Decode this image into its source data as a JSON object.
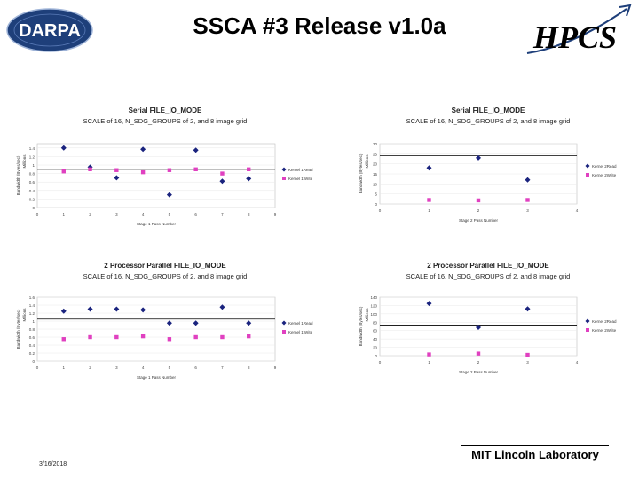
{
  "slide": {
    "title": "SSCA #3 Release v1.0a",
    "logo_left": "DARPA",
    "logo_right": "HPCS",
    "footer_org": "MIT Lincoln Laboratory",
    "footer_date": "3/16/2018"
  },
  "colors": {
    "series_a": "#1a237e",
    "series_b": "#e040c0",
    "threshold": "#000000"
  },
  "chart_data": [
    {
      "type": "scatter",
      "title": "Serial FILE_IO_MODE",
      "subtitle": "SCALE of 16, N_SDG_GROUPS of 2, and 8 image grid",
      "xlabel": "Stage 1 Pass Number",
      "ylabel": "Bandwidth (Bytes/sec)",
      "ylabel2": "Millions",
      "xlim": [
        0,
        9
      ],
      "ylim": [
        0,
        1.5
      ],
      "xticks": [
        "0",
        "1",
        "2",
        "3",
        "4",
        "5",
        "6",
        "7",
        "8",
        "9"
      ],
      "yticks": [
        "0",
        "0.2",
        "0.4",
        "0.6",
        "0.8",
        "1",
        "1.2",
        "1.4"
      ],
      "threshold": 0.9,
      "series": [
        {
          "name": "Kernel 1Read",
          "marker": "diamond",
          "x": [
            1,
            2,
            3,
            4,
            5,
            6,
            7,
            8
          ],
          "y": [
            1.4,
            0.95,
            0.7,
            1.37,
            0.3,
            1.35,
            0.62,
            0.68
          ]
        },
        {
          "name": "Kernel 1Write",
          "marker": "square",
          "x": [
            1,
            2,
            3,
            4,
            5,
            6,
            7,
            8
          ],
          "y": [
            0.85,
            0.9,
            0.88,
            0.83,
            0.88,
            0.9,
            0.8,
            0.9
          ]
        }
      ]
    },
    {
      "type": "scatter",
      "title": "Serial FILE_IO_MODE",
      "subtitle": "SCALE of 16, N_SDG_GROUPS of 2, and 8 image grid",
      "xlabel": "Stage 2 Pass Number",
      "ylabel": "Bandwidth (Bytes/sec)",
      "ylabel2": "Millions",
      "xlim": [
        0,
        4
      ],
      "ylim": [
        0,
        30
      ],
      "xticks": [
        "0",
        "1",
        "2",
        "3",
        "4"
      ],
      "yticks": [
        "0",
        "5",
        "10",
        "15",
        "20",
        "25",
        "30"
      ],
      "threshold": 24,
      "series": [
        {
          "name": "Kernel 2Read",
          "marker": "diamond",
          "x": [
            1,
            2,
            3
          ],
          "y": [
            18,
            23,
            12
          ]
        },
        {
          "name": "Kernel 2Write",
          "marker": "square",
          "x": [
            1,
            2,
            3
          ],
          "y": [
            2,
            1.8,
            2
          ]
        }
      ]
    },
    {
      "type": "scatter",
      "title": "2 Processor Parallel FILE_IO_MODE",
      "subtitle": "SCALE of 16, N_SDG_GROUPS of 2, and 8 image grid",
      "xlabel": "Stage 1 Pass Number",
      "ylabel": "Bandwidth (Bytes/sec)",
      "ylabel2": "Millions",
      "xlim": [
        0,
        9
      ],
      "ylim": [
        0,
        1.6
      ],
      "xticks": [
        "0",
        "1",
        "2",
        "3",
        "4",
        "5",
        "6",
        "7",
        "8",
        "9"
      ],
      "yticks": [
        "0",
        "0.2",
        "0.4",
        "0.6",
        "0.8",
        "1",
        "1.2",
        "1.4",
        "1.6"
      ],
      "threshold": 1.05,
      "series": [
        {
          "name": "Kernel 1Read",
          "marker": "diamond",
          "x": [
            1,
            2,
            3,
            4,
            5,
            6,
            7,
            8
          ],
          "y": [
            1.25,
            1.3,
            1.3,
            1.28,
            0.95,
            0.95,
            1.35,
            0.95
          ]
        },
        {
          "name": "Kernel 1Write",
          "marker": "square",
          "x": [
            1,
            2,
            3,
            4,
            5,
            6,
            7,
            8
          ],
          "y": [
            0.55,
            0.6,
            0.6,
            0.62,
            0.55,
            0.6,
            0.6,
            0.62
          ]
        }
      ]
    },
    {
      "type": "scatter",
      "title": "2 Processor Parallel FILE_IO_MODE",
      "subtitle": "SCALE of 16, N_SDG_GROUPS of 2, and 8 image grid",
      "xlabel": "Stage 2 Pass Number",
      "ylabel": "Bandwidth (Bytes/sec)",
      "ylabel2": "Millions",
      "xlim": [
        0,
        4
      ],
      "ylim": [
        0,
        140
      ],
      "xticks": [
        "0",
        "1",
        "2",
        "3",
        "4"
      ],
      "yticks": [
        "0",
        "20",
        "40",
        "60",
        "80",
        "100",
        "120",
        "140"
      ],
      "threshold": 73,
      "series": [
        {
          "name": "Kernel 2Read",
          "marker": "diamond",
          "x": [
            1,
            2,
            3
          ],
          "y": [
            125,
            68,
            112
          ]
        },
        {
          "name": "Kernel 2Write",
          "marker": "square",
          "x": [
            1,
            2,
            3
          ],
          "y": [
            3,
            5,
            2
          ]
        }
      ]
    }
  ]
}
